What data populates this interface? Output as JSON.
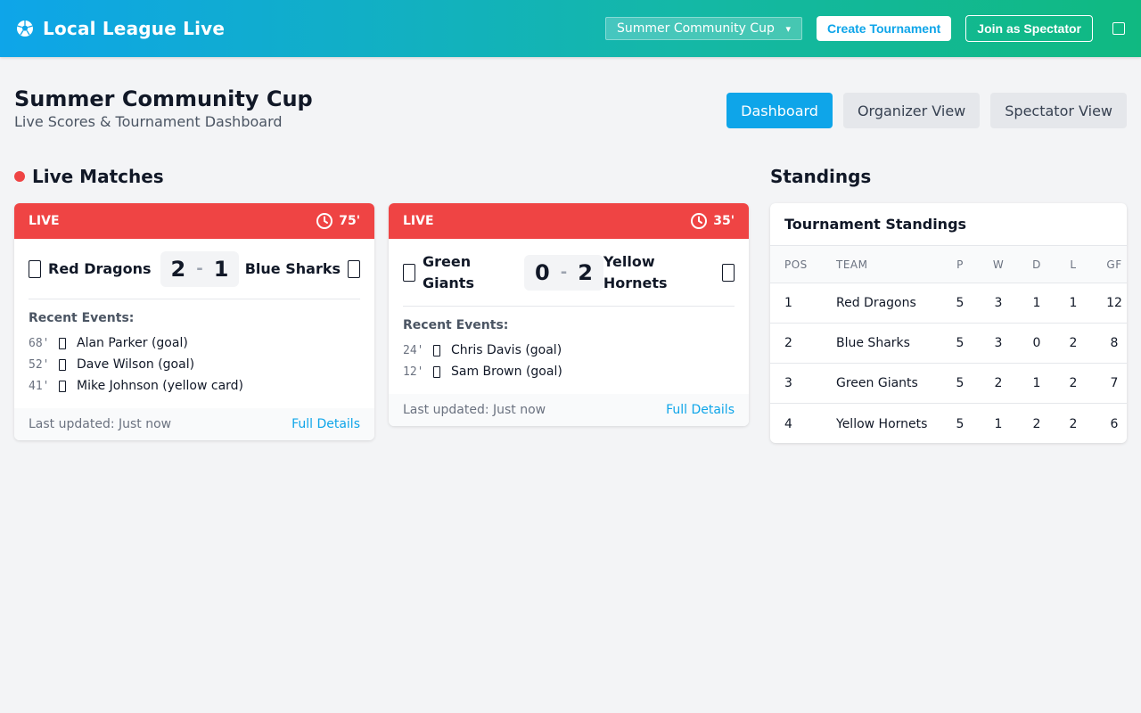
{
  "app": {
    "title": "Local League Live",
    "selected_tournament": "Summer Community Cup",
    "create_label": "Create Tournament",
    "join_label": "Join as Spectator"
  },
  "page": {
    "title": "Summer Community Cup",
    "subtitle": "Live Scores & Tournament Dashboard",
    "tabs": [
      {
        "label": "Dashboard",
        "active": true
      },
      {
        "label": "Organizer View",
        "active": false
      },
      {
        "label": "Spectator View",
        "active": false
      }
    ]
  },
  "live_section": {
    "title": "Live Matches"
  },
  "matches": [
    {
      "status": "LIVE",
      "minute": "75'",
      "home": "Red Dragons",
      "away": "Blue Sharks",
      "home_score": "2",
      "away_score": "1",
      "events_title": "Recent Events:",
      "events": [
        {
          "minute": "68'",
          "text": "Alan Parker (goal)"
        },
        {
          "minute": "52'",
          "text": "Dave Wilson (goal)"
        },
        {
          "minute": "41'",
          "text": "Mike Johnson (yellow card)"
        }
      ],
      "updated": "Last updated: Just now",
      "details": "Full Details"
    },
    {
      "status": "LIVE",
      "minute": "35'",
      "home": "Green Giants",
      "away": "Yellow Hornets",
      "home_score": "0",
      "away_score": "2",
      "events_title": "Recent Events:",
      "events": [
        {
          "minute": "24'",
          "text": "Chris Davis (goal)"
        },
        {
          "minute": "12'",
          "text": "Sam Brown (goal)"
        }
      ],
      "updated": "Last updated: Just now",
      "details": "Full Details"
    }
  ],
  "standings_section": {
    "title": "Standings"
  },
  "standings": {
    "title": "Tournament Standings",
    "columns": [
      "POS",
      "TEAM",
      "P",
      "W",
      "D",
      "L",
      "GF"
    ],
    "rows": [
      {
        "pos": "1",
        "team": "Red Dragons",
        "p": "5",
        "w": "3",
        "d": "1",
        "l": "1",
        "gf": "12"
      },
      {
        "pos": "2",
        "team": "Blue Sharks",
        "p": "5",
        "w": "3",
        "d": "0",
        "l": "2",
        "gf": "8"
      },
      {
        "pos": "3",
        "team": "Green Giants",
        "p": "5",
        "w": "2",
        "d": "1",
        "l": "2",
        "gf": "7"
      },
      {
        "pos": "4",
        "team": "Yellow Hornets",
        "p": "5",
        "w": "1",
        "d": "2",
        "l": "2",
        "gf": "6"
      }
    ]
  },
  "colors": {
    "header_gradient_start": "#0ea5e9",
    "header_gradient_end": "#10b981",
    "live_red": "#ef4444",
    "accent": "#0ea5e9"
  }
}
